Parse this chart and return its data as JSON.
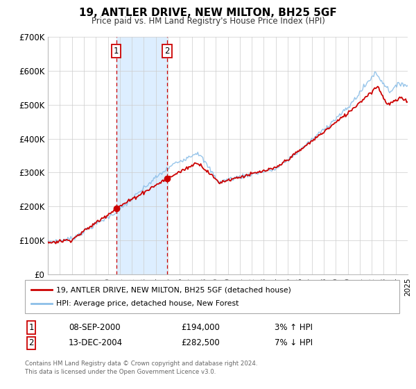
{
  "title": "19, ANTLER DRIVE, NEW MILTON, BH25 5GF",
  "subtitle": "Price paid vs. HM Land Registry's House Price Index (HPI)",
  "ylim": [
    0,
    700000
  ],
  "yticks": [
    0,
    100000,
    200000,
    300000,
    400000,
    500000,
    600000,
    700000
  ],
  "ytick_labels": [
    "£0",
    "£100K",
    "£200K",
    "£300K",
    "£400K",
    "£500K",
    "£600K",
    "£700K"
  ],
  "hpi_color": "#8cbfe8",
  "price_color": "#cc0000",
  "marker_color": "#cc0000",
  "sale1_year": 2000.7,
  "sale1_price": 194000,
  "sale1_label": "08-SEP-2000",
  "sale1_price_str": "£194,000",
  "sale1_hpi_pct": "3% ↑ HPI",
  "sale2_year": 2004.95,
  "sale2_price": 282500,
  "sale2_label": "13-DEC-2004",
  "sale2_price_str": "£282,500",
  "sale2_hpi_pct": "7% ↓ HPI",
  "legend_line1": "19, ANTLER DRIVE, NEW MILTON, BH25 5GF (detached house)",
  "legend_line2": "HPI: Average price, detached house, New Forest",
  "footnote1": "Contains HM Land Registry data © Crown copyright and database right 2024.",
  "footnote2": "This data is licensed under the Open Government Licence v3.0.",
  "background_color": "#ffffff",
  "plot_bg_color": "#ffffff",
  "grid_color": "#cccccc",
  "shading_color": "#ddeeff",
  "box_edge_color": "#cc0000"
}
